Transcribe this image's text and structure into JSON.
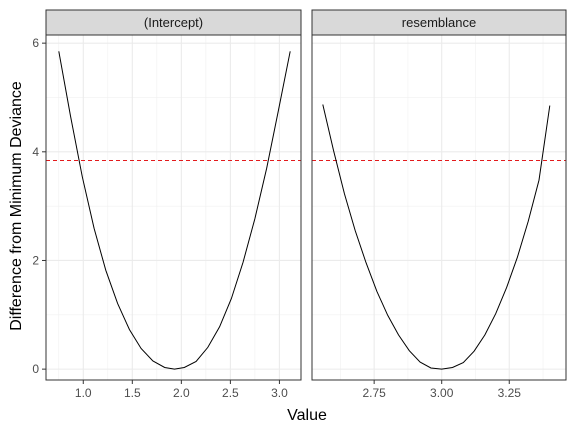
{
  "chart_data": {
    "type": "line",
    "xlabel": "Value",
    "ylabel": "Difference from Minimum Deviance",
    "ylim": [
      -0.2,
      6.15
    ],
    "yticks": [
      0,
      2,
      4,
      6
    ],
    "ytick_labels": [
      "0",
      "2",
      "4",
      "6"
    ],
    "reference_line": {
      "y": 3.84,
      "style": "dashed",
      "color": "#e31a1c"
    },
    "grid": true,
    "legend": "none",
    "line_color": "#000000",
    "panels": [
      {
        "strip_label": "(Intercept)",
        "xlim": [
          0.62,
          3.22
        ],
        "xticks": [
          1.0,
          1.5,
          2.0,
          2.5,
          3.0
        ],
        "xtick_labels": [
          "1.0",
          "1.5",
          "2.0",
          "2.5",
          "3.0"
        ],
        "x": [
          0.75,
          0.87,
          0.99,
          1.11,
          1.23,
          1.35,
          1.47,
          1.59,
          1.71,
          1.83,
          1.93,
          2.03,
          2.15,
          2.27,
          2.39,
          2.51,
          2.63,
          2.75,
          2.87,
          2.99,
          3.11
        ],
        "y": [
          5.85,
          4.66,
          3.54,
          2.59,
          1.82,
          1.21,
          0.73,
          0.38,
          0.15,
          0.03,
          0.0,
          0.03,
          0.14,
          0.4,
          0.78,
          1.3,
          1.97,
          2.77,
          3.7,
          4.76,
          5.85
        ]
      },
      {
        "strip_label": "resemblance",
        "xlim": [
          2.52,
          3.46
        ],
        "xticks": [
          2.75,
          3.0,
          3.25
        ],
        "xtick_labels": [
          "2.75",
          "3.00",
          "3.25"
        ],
        "x": [
          2.56,
          2.6,
          2.64,
          2.68,
          2.72,
          2.76,
          2.8,
          2.84,
          2.88,
          2.92,
          2.96,
          3.0,
          3.04,
          3.08,
          3.12,
          3.16,
          3.2,
          3.24,
          3.28,
          3.32,
          3.36,
          3.4
        ],
        "y": [
          4.87,
          4.02,
          3.23,
          2.55,
          1.96,
          1.43,
          0.99,
          0.63,
          0.34,
          0.13,
          0.02,
          0.0,
          0.03,
          0.12,
          0.33,
          0.63,
          1.02,
          1.5,
          2.06,
          2.72,
          3.48,
          4.85
        ]
      }
    ]
  }
}
